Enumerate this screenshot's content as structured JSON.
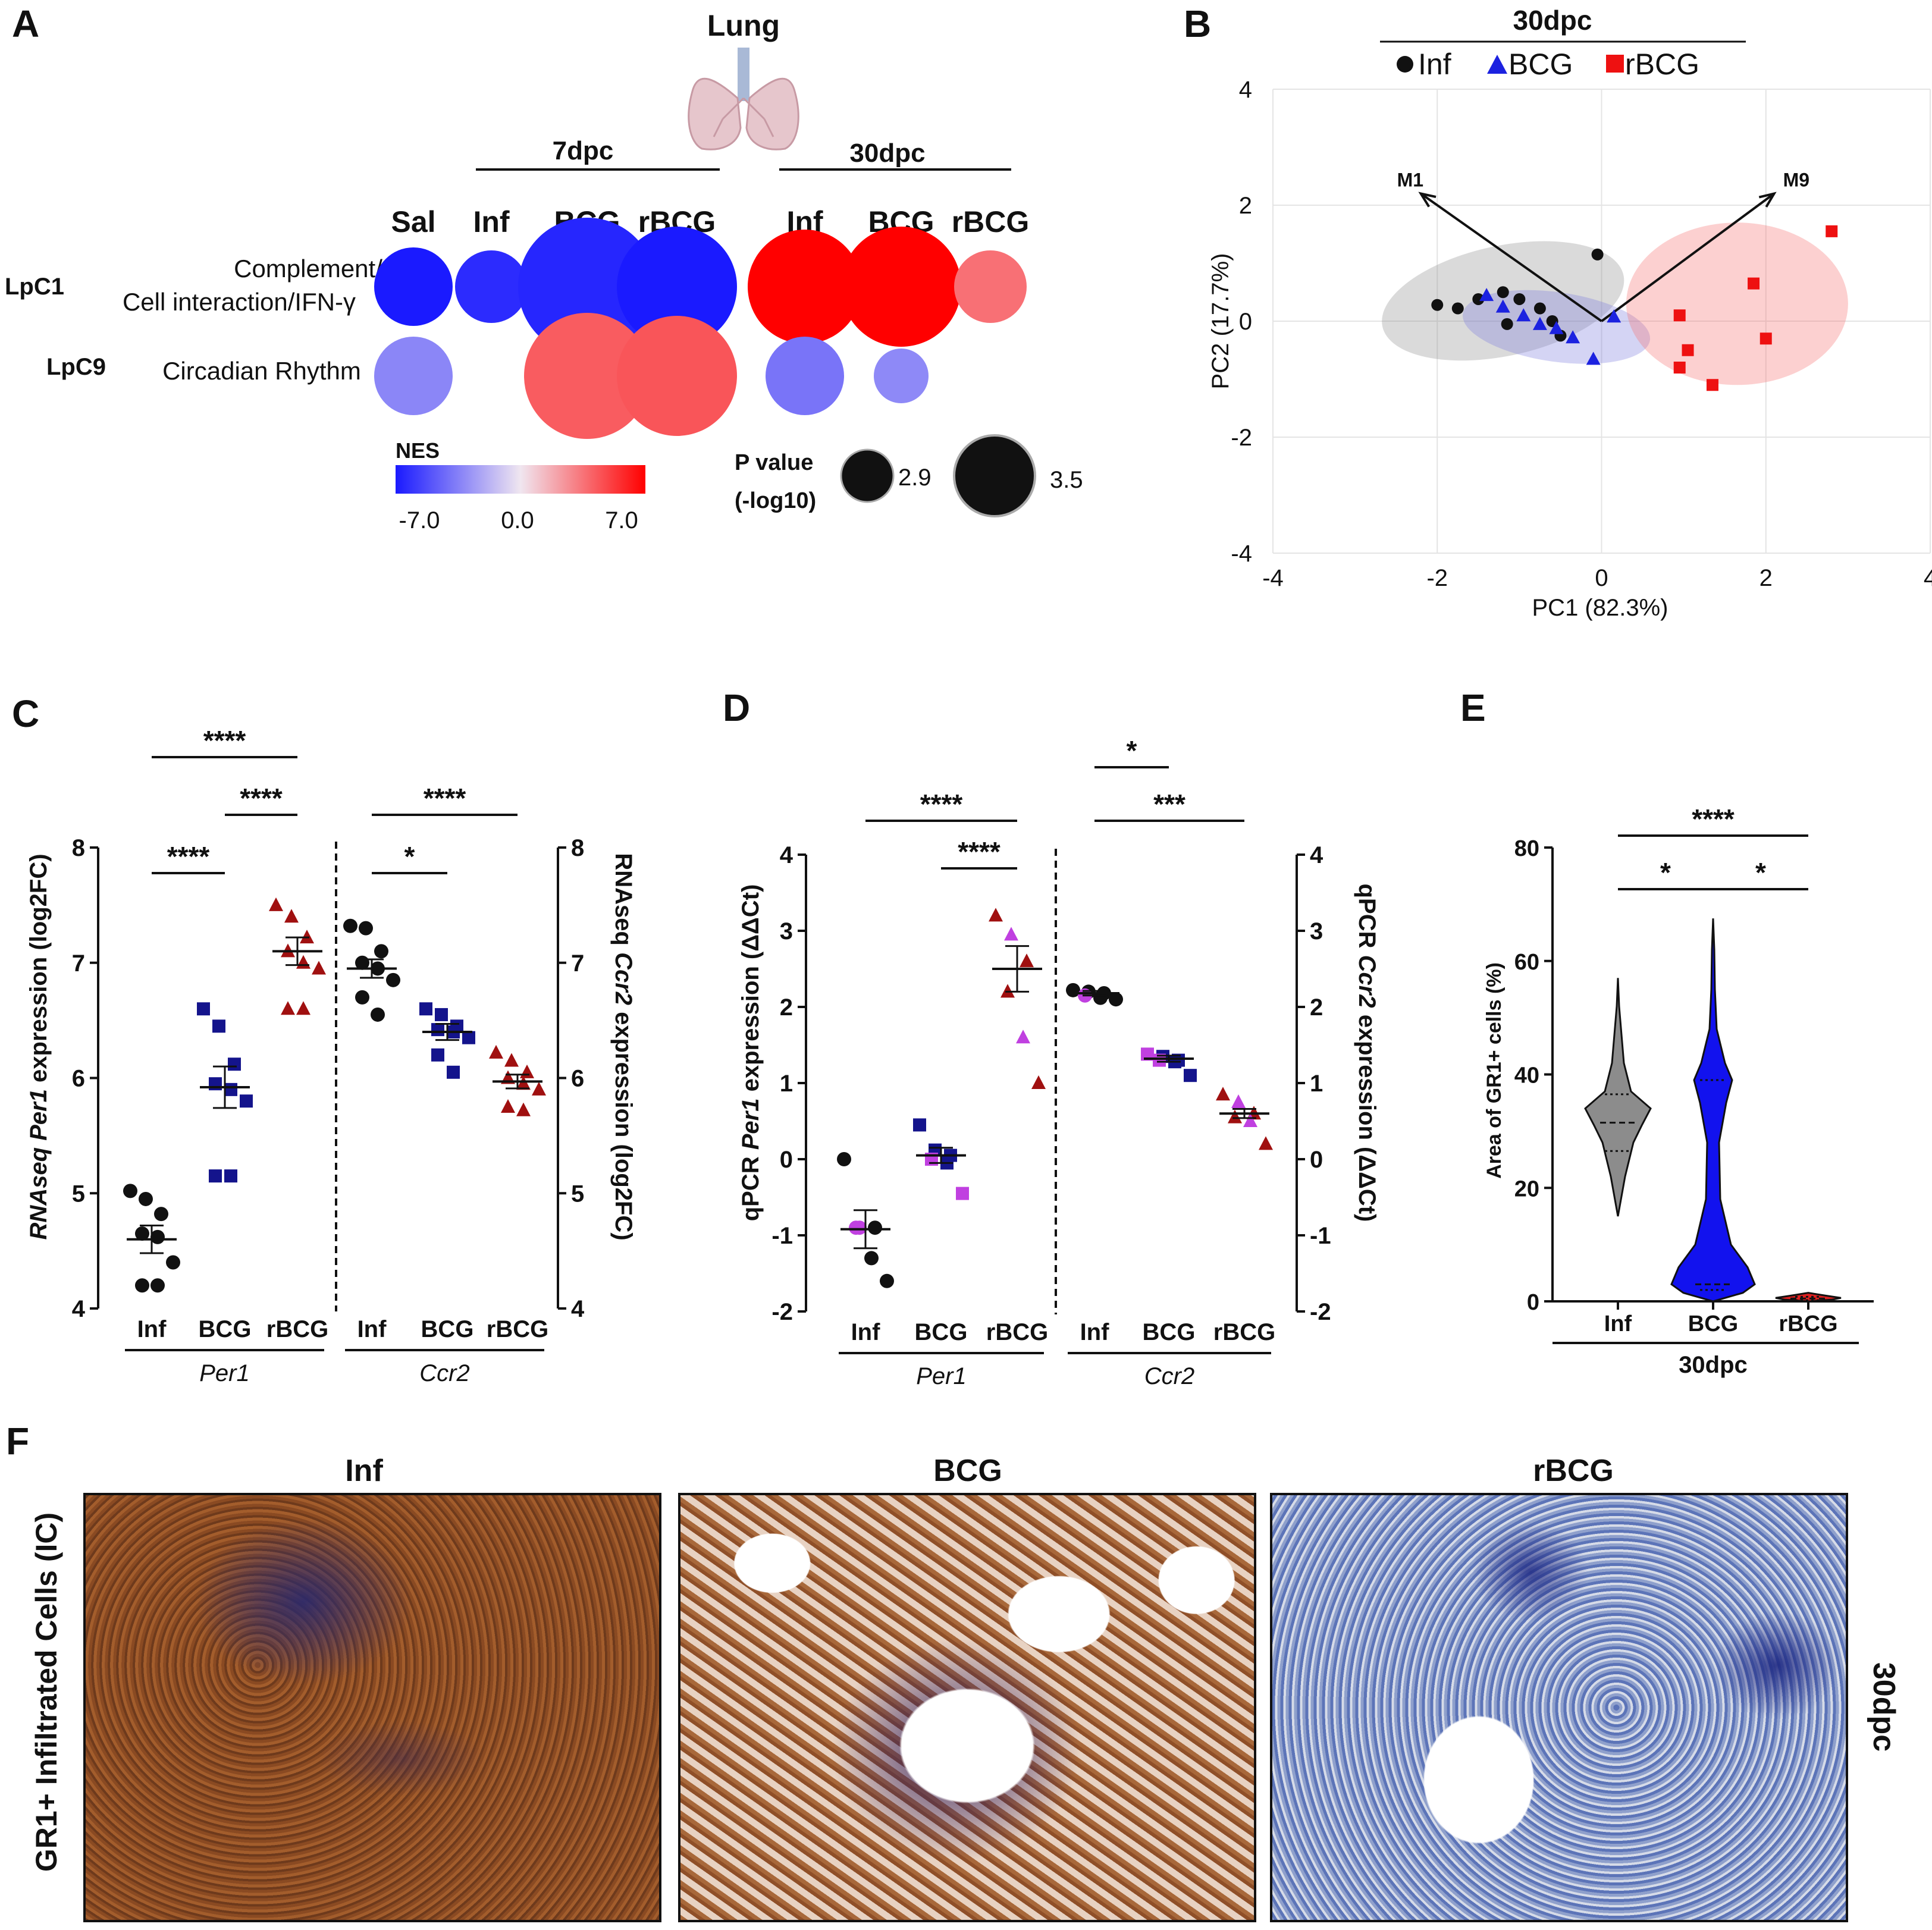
{
  "panelA": {
    "letter": "A",
    "organ": "Lung",
    "groups": [
      {
        "label": "7dpc"
      },
      {
        "label": "30dpc"
      }
    ],
    "columns": [
      "Sal",
      "Inf",
      "BCG",
      "rBCG",
      "Inf",
      "BCG",
      "rBCG"
    ],
    "rows": [
      {
        "id": "LpC1",
        "desc1": "Complement/",
        "desc2": "Cell interaction/IFN-γ"
      },
      {
        "id": "LpC9",
        "desc1": "Circadian Rhythm",
        "desc2": ""
      }
    ],
    "nes_title": "NES",
    "nes_ticks": [
      "-7.0",
      "0.0",
      "7.0"
    ],
    "pval_title1": "P value",
    "pval_title2": "(-log10)",
    "pval_small": "2.9",
    "pval_large": "3.5",
    "colors": {
      "neg": "#1a1aff",
      "mid": "#f0e6f0",
      "pos": "#ff0000"
    }
  },
  "panelB": {
    "letter": "B",
    "title": "30dpc",
    "legend": [
      "Inf",
      "BCG",
      "rBCG"
    ],
    "xlabel": "PC1 (82.3%)",
    "ylabel": "PC2 (17.7%)",
    "xticks": [
      "-4",
      "-2",
      "0",
      "2",
      "4"
    ],
    "yticks": [
      "4",
      "2",
      "0",
      "-2",
      "-4"
    ],
    "arrow_labels": [
      "M1",
      "M9"
    ]
  },
  "panelC": {
    "letter": "C",
    "ylabel_left_pre": "RNAseq ",
    "ylabel_left_gene": "Per1",
    "ylabel_left_post": " expression (log2FC)",
    "ylabel_right_pre": "RNAseq ",
    "ylabel_right_gene": "Ccr2",
    "ylabel_right_post": " expression (log2FC)",
    "yticks": [
      "8",
      "7",
      "6",
      "5",
      "4"
    ],
    "cats": [
      "Inf",
      "BCG",
      "rBCG",
      "Inf",
      "BCG",
      "rBCG"
    ],
    "genes": [
      "Per1",
      "Ccr2"
    ],
    "sig": [
      "****",
      "****",
      "****",
      "****",
      "*"
    ]
  },
  "panelD": {
    "letter": "D",
    "ylabel_left_pre": "qPCR ",
    "ylabel_left_gene": "Per1",
    "ylabel_left_post": " expression (ΔΔCt)",
    "ylabel_right_pre": "qPCR ",
    "ylabel_right_gene": "Ccr2",
    "ylabel_right_post": " expression (ΔΔCt)",
    "yticks": [
      "4",
      "3",
      "2",
      "1",
      "0",
      "-1",
      "-2"
    ],
    "cats": [
      "Inf",
      "BCG",
      "rBCG",
      "Inf",
      "BCG",
      "rBCG"
    ],
    "genes": [
      "Per1",
      "Ccr2"
    ],
    "sig": [
      "****",
      "****",
      "*",
      "***"
    ]
  },
  "panelE": {
    "letter": "E",
    "ylabel": "Area of GR1+ cells (%)",
    "yticks": [
      "80",
      "60",
      "40",
      "20",
      "0"
    ],
    "cats": [
      "Inf",
      "BCG",
      "rBCG"
    ],
    "group": "30dpc",
    "sig": [
      "****",
      "*",
      "*"
    ]
  },
  "panelF": {
    "letter": "F",
    "titles": [
      "Inf",
      "BCG",
      "rBCG"
    ],
    "side_label": "GR1+ Infiltrated Cells (IC)",
    "right_label": "30dpc"
  },
  "chart_data": [
    {
      "panel": "A",
      "type": "heatmap",
      "columns": [
        "Sal 7dpc",
        "Inf 7dpc",
        "BCG 7dpc",
        "rBCG 7dpc",
        "Inf 30dpc",
        "BCG 30dpc",
        "rBCG 30dpc"
      ],
      "rows": [
        "LpC1",
        "LpC9"
      ],
      "nes": [
        [
          -7.0,
          -6.4,
          -6.6,
          -7.0,
          7.0,
          7.0,
          3.6
        ],
        [
          -3.3,
          null,
          4.2,
          4.4,
          -3.9,
          -3.2,
          null
        ]
      ],
      "neglog10p": [
        [
          3.0,
          2.95,
          3.5,
          3.35,
          3.3,
          3.35,
          2.95
        ],
        [
          3.0,
          null,
          3.4,
          3.35,
          3.0,
          2.8,
          null
        ]
      ],
      "nes_range": [
        -7.0,
        7.0
      ]
    },
    {
      "panel": "B",
      "type": "scatter",
      "xlabel": "PC1 (82.3%)",
      "ylabel": "PC2 (17.7%)",
      "xlim": [
        -4,
        4
      ],
      "ylim": [
        -4,
        4
      ],
      "series": [
        {
          "name": "Inf",
          "color": "#111111",
          "points": [
            [
              -2.0,
              0.28
            ],
            [
              -1.75,
              0.22
            ],
            [
              -1.5,
              0.38
            ],
            [
              -1.2,
              0.5
            ],
            [
              -1.0,
              0.38
            ],
            [
              -0.75,
              0.22
            ],
            [
              -0.6,
              0.0
            ],
            [
              -0.5,
              -0.25
            ],
            [
              -0.05,
              1.15
            ],
            [
              -1.15,
              -0.05
            ]
          ]
        },
        {
          "name": "BCG",
          "color": "#1c22e0",
          "points": [
            [
              -1.4,
              0.45
            ],
            [
              -1.2,
              0.25
            ],
            [
              -0.95,
              0.1
            ],
            [
              -0.75,
              -0.05
            ],
            [
              -0.55,
              -0.12
            ],
            [
              -0.35,
              -0.28
            ],
            [
              -0.1,
              -0.65
            ],
            [
              0.15,
              0.08
            ]
          ]
        },
        {
          "name": "rBCG",
          "color": "#ee1111",
          "points": [
            [
              0.95,
              0.1
            ],
            [
              1.05,
              -0.5
            ],
            [
              0.95,
              -0.8
            ],
            [
              1.35,
              -1.1
            ],
            [
              1.85,
              0.65
            ],
            [
              2.0,
              -0.3
            ],
            [
              2.8,
              1.55
            ]
          ]
        }
      ],
      "ellipses": [
        {
          "name": "Inf",
          "center": [
            -1.2,
            0.35
          ],
          "rx": 1.5,
          "ry": 0.95,
          "angle": 12
        },
        {
          "name": "BCG",
          "center": [
            -0.55,
            -0.1
          ],
          "rx": 1.15,
          "ry": 0.6,
          "angle": -8
        },
        {
          "name": "rBCG",
          "center": [
            1.65,
            0.3
          ],
          "rx": 1.35,
          "ry": 1.4,
          "angle": 0
        }
      ],
      "arrows": [
        {
          "label": "M1",
          "to": [
            -2.2,
            2.2
          ]
        },
        {
          "label": "M9",
          "to": [
            2.1,
            2.2
          ]
        }
      ]
    },
    {
      "panel": "C",
      "type": "scatter",
      "ylabel": "RNAseq Per1/Ccr2 expression (log2FC)",
      "ylim": [
        4,
        8
      ],
      "groups": [
        {
          "gene": "Per1",
          "name": "Inf",
          "color": "#111111",
          "mean": 4.6,
          "sem": 0.12,
          "values": [
            5.02,
            4.95,
            4.82,
            4.65,
            4.62,
            4.4,
            4.2,
            4.2
          ]
        },
        {
          "gene": "Per1",
          "name": "BCG",
          "color": "#14148c",
          "mean": 5.92,
          "sem": 0.18,
          "values": [
            6.6,
            6.45,
            6.12,
            5.95,
            5.9,
            5.8,
            5.15,
            5.15
          ]
        },
        {
          "gene": "Per1",
          "name": "rBCG",
          "color": "#a01010",
          "mean": 7.1,
          "sem": 0.12,
          "values": [
            7.5,
            7.4,
            7.22,
            7.1,
            7.0,
            6.95,
            6.6,
            6.6
          ]
        },
        {
          "gene": "Ccr2",
          "name": "Inf",
          "color": "#111111",
          "mean": 6.95,
          "sem": 0.08,
          "values": [
            7.32,
            7.3,
            7.1,
            7.0,
            6.95,
            6.85,
            6.7,
            6.55
          ]
        },
        {
          "gene": "Ccr2",
          "name": "BCG",
          "color": "#14148c",
          "mean": 6.4,
          "sem": 0.07,
          "values": [
            6.6,
            6.55,
            6.45,
            6.42,
            6.4,
            6.35,
            6.2,
            6.05
          ]
        },
        {
          "gene": "Ccr2",
          "name": "rBCG",
          "color": "#a01010",
          "mean": 5.97,
          "sem": 0.06,
          "values": [
            6.22,
            6.15,
            6.05,
            6.0,
            5.95,
            5.9,
            5.75,
            5.72
          ]
        }
      ],
      "comparisons": [
        {
          "a": 0,
          "b": 2,
          "label": "****"
        },
        {
          "a": 1,
          "b": 2,
          "label": "****"
        },
        {
          "a": 0,
          "b": 1,
          "label": "****"
        },
        {
          "a": 3,
          "b": 5,
          "label": "****"
        },
        {
          "a": 3,
          "b": 4,
          "label": "*"
        }
      ]
    },
    {
      "panel": "D",
      "type": "scatter",
      "ylabel": "qPCR Per1/Ccr2 expression (ΔΔCt)",
      "ylim": [
        -2,
        4
      ],
      "groups": [
        {
          "gene": "Per1",
          "name": "Inf",
          "mean": -0.92,
          "sem": 0.25,
          "values": [
            [
              0.0,
              "#111111"
            ],
            [
              -0.9,
              "#c040e0"
            ],
            [
              -0.9,
              "#111111"
            ],
            [
              -0.9,
              "#c040e0"
            ],
            [
              -1.3,
              "#111111"
            ],
            [
              -1.6,
              "#111111"
            ]
          ]
        },
        {
          "gene": "Per1",
          "name": "BCG",
          "mean": 0.05,
          "sem": 0.1,
          "values": [
            [
              0.45,
              "#14148c"
            ],
            [
              0.12,
              "#14148c"
            ],
            [
              0.05,
              "#14148c"
            ],
            [
              0.0,
              "#c040e0"
            ],
            [
              -0.05,
              "#14148c"
            ],
            [
              -0.45,
              "#c040e0"
            ]
          ]
        },
        {
          "gene": "Per1",
          "name": "rBCG",
          "mean": 2.5,
          "sem": 0.3,
          "values": [
            [
              3.2,
              "#a01010"
            ],
            [
              2.95,
              "#c040e0"
            ],
            [
              2.6,
              "#a01010"
            ],
            [
              2.2,
              "#a01010"
            ],
            [
              1.6,
              "#c040e0"
            ],
            [
              1.0,
              "#a01010"
            ]
          ]
        },
        {
          "gene": "Ccr2",
          "name": "Inf",
          "mean": 2.18,
          "sem": 0.03,
          "values": [
            [
              2.22,
              "#111111"
            ],
            [
              2.2,
              "#111111"
            ],
            [
              2.18,
              "#111111"
            ],
            [
              2.15,
              "#c040e0"
            ],
            [
              2.12,
              "#111111"
            ],
            [
              2.1,
              "#111111"
            ]
          ]
        },
        {
          "gene": "Ccr2",
          "name": "BCG",
          "mean": 1.32,
          "sem": 0.04,
          "values": [
            [
              1.38,
              "#c040e0"
            ],
            [
              1.35,
              "#14148c"
            ],
            [
              1.3,
              "#14148c"
            ],
            [
              1.3,
              "#c040e0"
            ],
            [
              1.28,
              "#14148c"
            ],
            [
              1.1,
              "#14148c"
            ]
          ]
        },
        {
          "gene": "Ccr2",
          "name": "rBCG",
          "mean": 0.6,
          "sem": 0.06,
          "values": [
            [
              0.85,
              "#a01010"
            ],
            [
              0.75,
              "#c040e0"
            ],
            [
              0.6,
              "#a01010"
            ],
            [
              0.55,
              "#a01010"
            ],
            [
              0.5,
              "#c040e0"
            ],
            [
              0.2,
              "#a01010"
            ]
          ]
        }
      ],
      "comparisons": [
        {
          "a": 0,
          "b": 2,
          "label": "****"
        },
        {
          "a": 1,
          "b": 2,
          "label": "****"
        },
        {
          "a": 3,
          "b": 4,
          "label": "*"
        },
        {
          "a": 3,
          "b": 5,
          "label": "***"
        }
      ]
    },
    {
      "panel": "E",
      "type": "violin",
      "ylabel": "Area of GR1+ cells (%)",
      "ylim": [
        0,
        80
      ],
      "categories": [
        "Inf",
        "BCG",
        "rBCG"
      ],
      "series": [
        {
          "name": "Inf",
          "color": "#8c8c8c",
          "min": 15,
          "max": 57,
          "median": 31.5,
          "q1": 26.5,
          "q3": 36.5
        },
        {
          "name": "BCG",
          "color": "#1212ee",
          "min": 0,
          "max": 67.5,
          "median": 3,
          "q1": 2,
          "q3": 39
        },
        {
          "name": "rBCG",
          "color": "#e02020",
          "min": 0,
          "max": 1.5,
          "median": 0.5,
          "q1": 0.2,
          "q3": 0.8
        }
      ],
      "comparisons": [
        {
          "a": 0,
          "b": 2,
          "label": "****"
        },
        {
          "a": 0,
          "b": 1,
          "label": "*"
        },
        {
          "a": 1,
          "b": 2,
          "label": "*"
        }
      ]
    }
  ]
}
